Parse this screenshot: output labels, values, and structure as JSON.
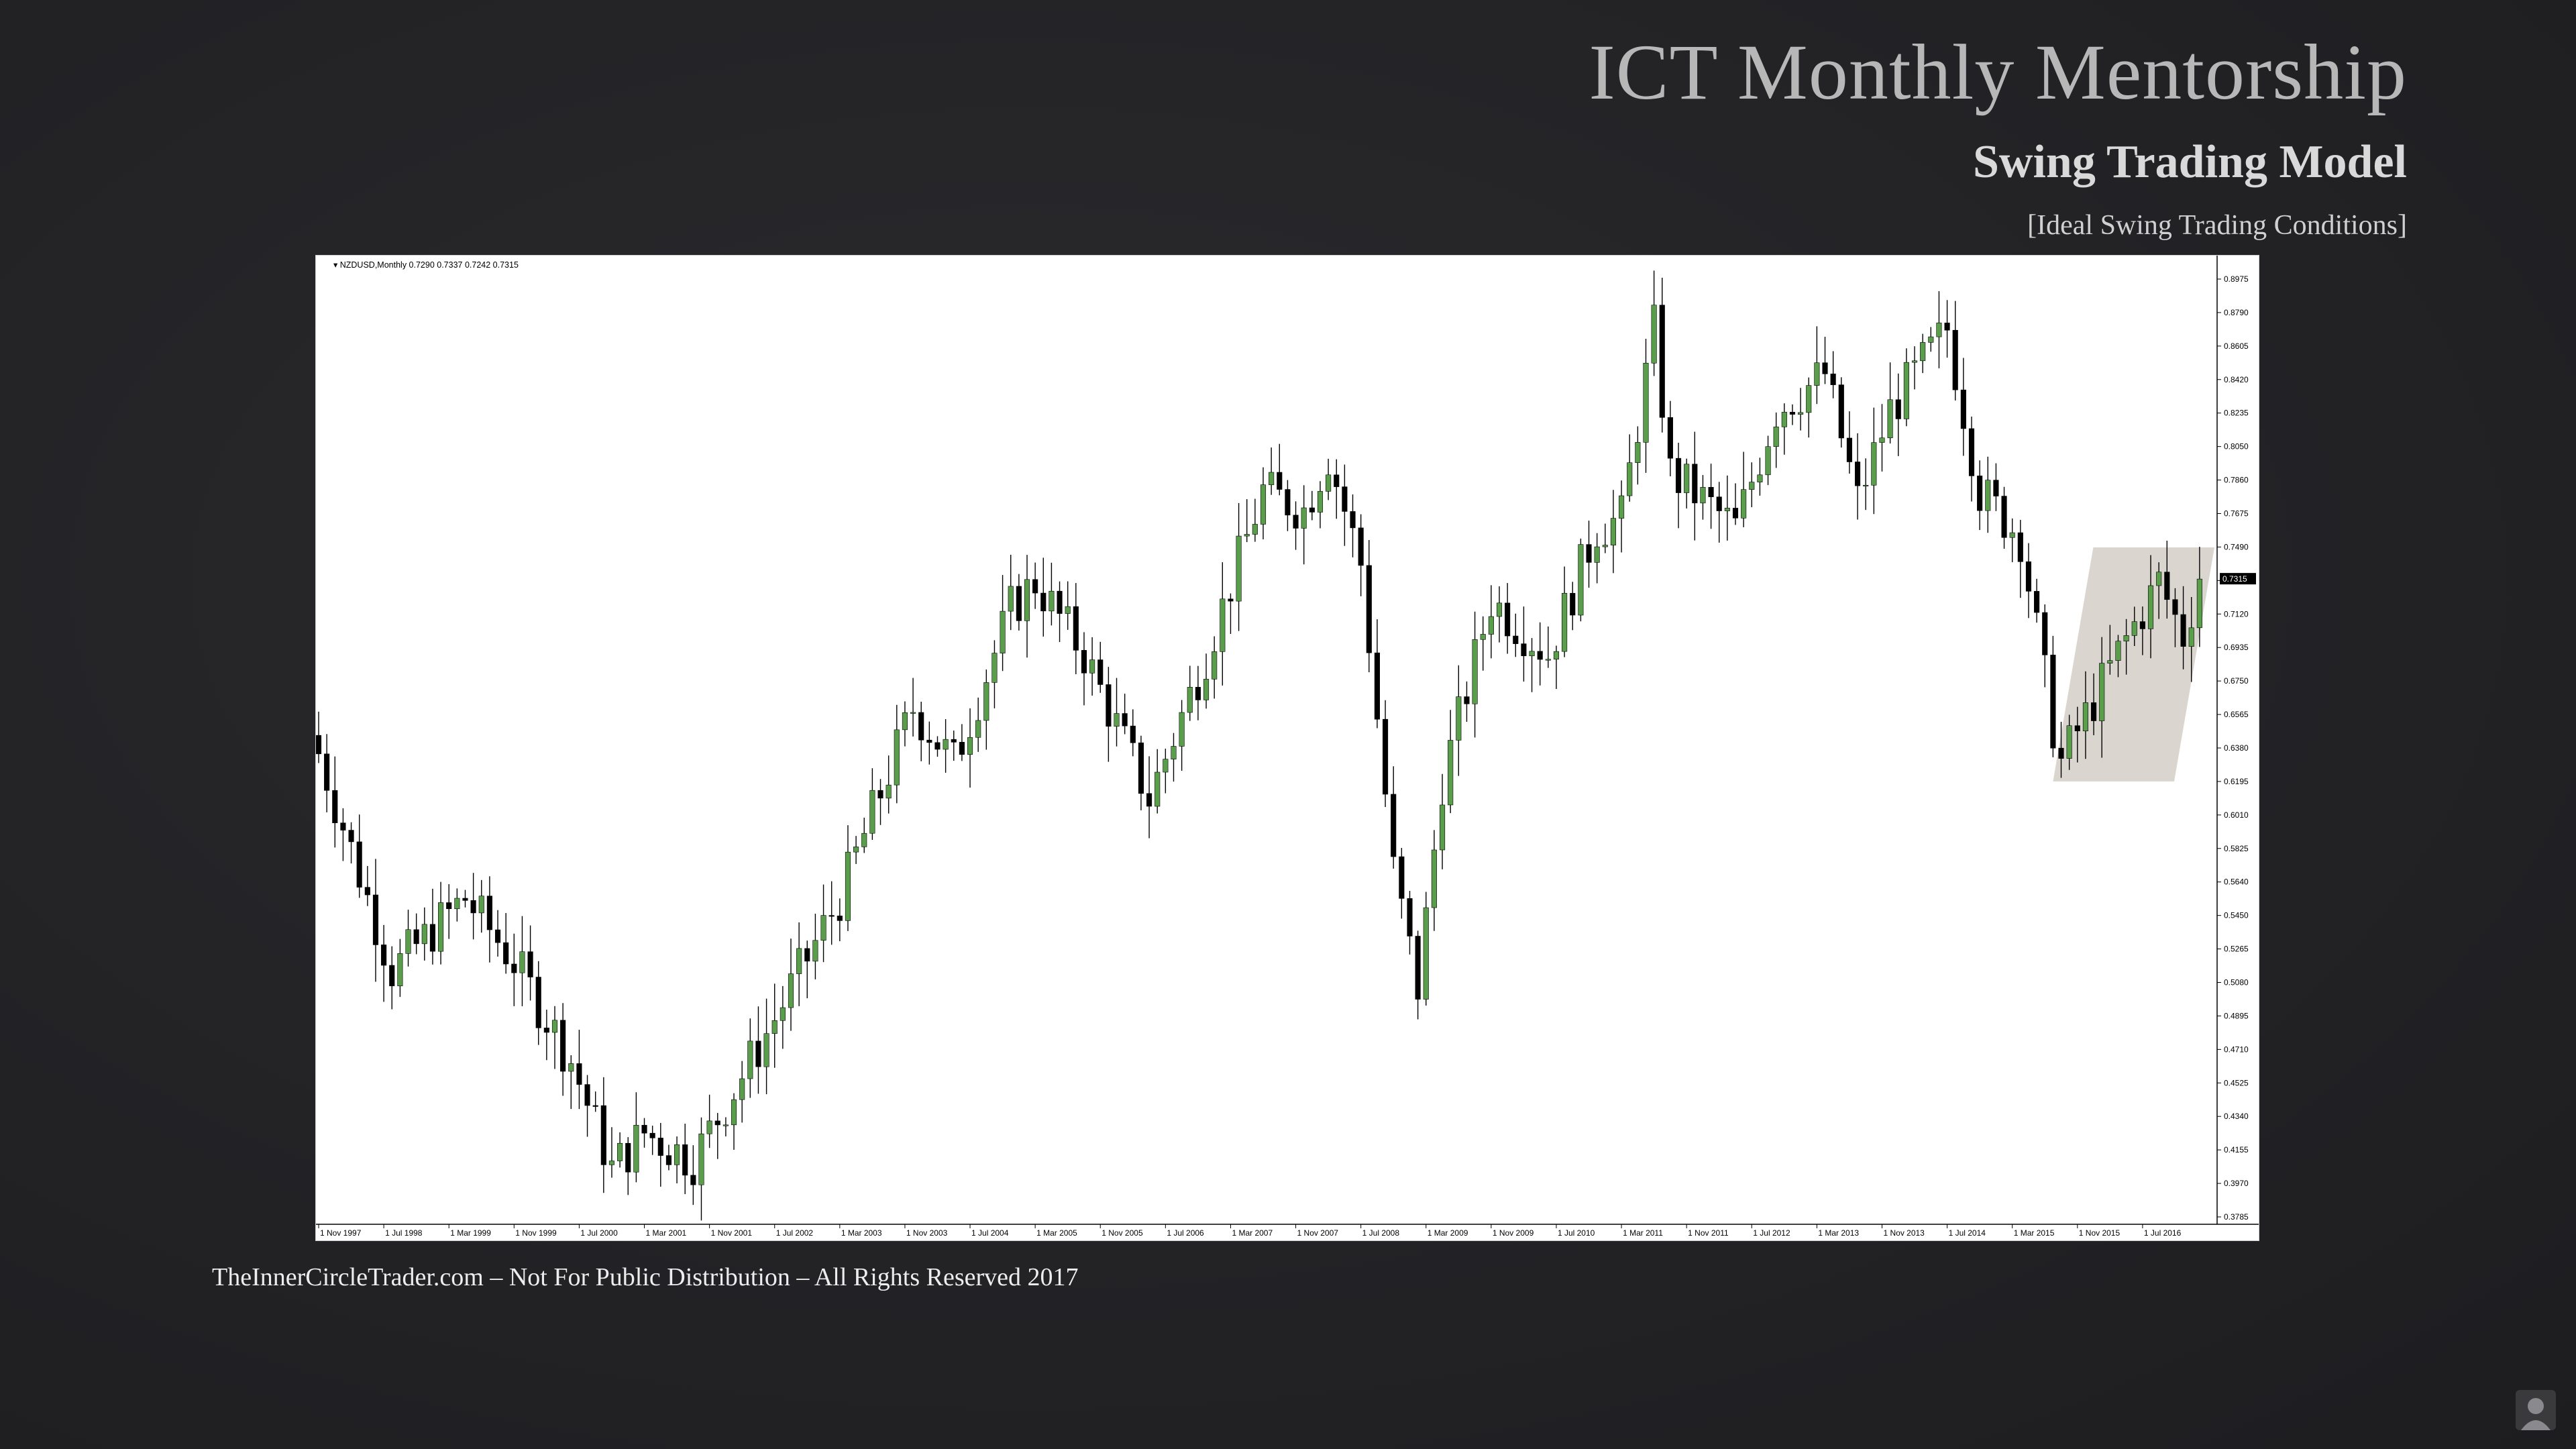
{
  "slide": {
    "title": "ICT Monthly Mentorship",
    "subtitle": "Swing Trading Model",
    "caption": "[Ideal Swing Trading Conditions]",
    "footer": "TheInnerCircleTrader.com – Not For Public Distribution – All Rights Reserved 2017"
  },
  "colors": {
    "bull_candle": "#5a9e4c",
    "bear_candle": "#000000",
    "highlight_zone": "#d5cec7",
    "price_tag_bg": "#000000"
  },
  "chart_data": {
    "type": "candlestick",
    "instrument_label": "NZDUSD,Monthly",
    "ohlc_readout": "0.7290 0.7337 0.7242 0.7315",
    "y_tick_labels": [
      "0.8975",
      "0.8790",
      "0.8605",
      "0.8420",
      "0.8235",
      "0.8050",
      "0.7860",
      "0.7675",
      "0.7490",
      "0.7315",
      "0.7120",
      "0.6935",
      "0.6750",
      "0.6565",
      "0.6380",
      "0.6195",
      "0.6010",
      "0.5825",
      "0.5640",
      "0.5450",
      "0.5265",
      "0.5080",
      "0.4895",
      "0.4710",
      "0.4525",
      "0.4340",
      "0.4155",
      "0.3970",
      "0.3785"
    ],
    "current_price": "0.7315",
    "ylim": [
      0.3785,
      0.8975
    ],
    "x_tick_labels": [
      "1 Nov 1997",
      "1 Jul 1998",
      "1 Mar 1999",
      "1 Nov 1999",
      "1 Jul 2000",
      "1 Mar 2001",
      "1 Nov 2001",
      "1 Jul 2002",
      "1 Mar 2003",
      "1 Nov 2003",
      "1 Jul 2004",
      "1 Mar 2005",
      "1 Nov 2005",
      "1 Jul 2006",
      "1 Mar 2007",
      "1 Nov 2007",
      "1 Jul 2008",
      "1 Mar 2009",
      "1 Nov 2009",
      "1 Jul 2010",
      "1 Mar 2011",
      "1 Nov 2011",
      "1 Jul 2012",
      "1 Mar 2013",
      "1 Nov 2013",
      "1 Jul 2014",
      "1 Mar 2015",
      "1 Nov 2015",
      "1 Jul 2016"
    ],
    "close_path": [
      [
        "1997-11",
        0.635
      ],
      [
        "1998-08",
        0.515
      ],
      [
        "1999-05",
        0.555
      ],
      [
        "1999-11",
        0.52
      ],
      [
        "2000-06",
        0.465
      ],
      [
        "2000-11",
        0.405
      ],
      [
        "2001-03",
        0.425
      ],
      [
        "2001-09",
        0.41
      ],
      [
        "2002-06",
        0.48
      ],
      [
        "2003-03",
        0.555
      ],
      [
        "2003-12",
        0.66
      ],
      [
        "2004-05",
        0.63
      ],
      [
        "2004-12",
        0.715
      ],
      [
        "2005-03",
        0.73
      ],
      [
        "2005-09",
        0.69
      ],
      [
        "2006-05",
        0.61
      ],
      [
        "2006-12",
        0.69
      ],
      [
        "2007-07",
        0.78
      ],
      [
        "2007-12",
        0.77
      ],
      [
        "2008-03",
        0.8
      ],
      [
        "2008-07",
        0.74
      ],
      [
        "2008-11",
        0.57
      ],
      [
        "2009-02",
        0.505
      ],
      [
        "2009-05",
        0.62
      ],
      [
        "2009-11",
        0.72
      ],
      [
        "2010-06",
        0.69
      ],
      [
        "2010-12",
        0.76
      ],
      [
        "2011-03",
        0.765
      ],
      [
        "2011-07",
        0.87
      ],
      [
        "2011-09",
        0.79
      ],
      [
        "2012-05",
        0.76
      ],
      [
        "2012-10",
        0.825
      ],
      [
        "2013-04",
        0.845
      ],
      [
        "2013-08",
        0.775
      ],
      [
        "2013-12",
        0.825
      ],
      [
        "2014-07",
        0.87
      ],
      [
        "2014-11",
        0.78
      ],
      [
        "2015-04",
        0.755
      ],
      [
        "2015-08",
        0.65
      ],
      [
        "2015-09",
        0.63
      ],
      [
        "2016-04",
        0.69
      ],
      [
        "2016-09",
        0.73
      ],
      [
        "2016-12",
        0.7
      ],
      [
        "2017-02",
        0.7315
      ]
    ],
    "highlight_zone": {
      "from": "2015-08",
      "to": "2017-03",
      "low": 0.6195,
      "high": 0.749,
      "shape": "parallelogram"
    }
  }
}
